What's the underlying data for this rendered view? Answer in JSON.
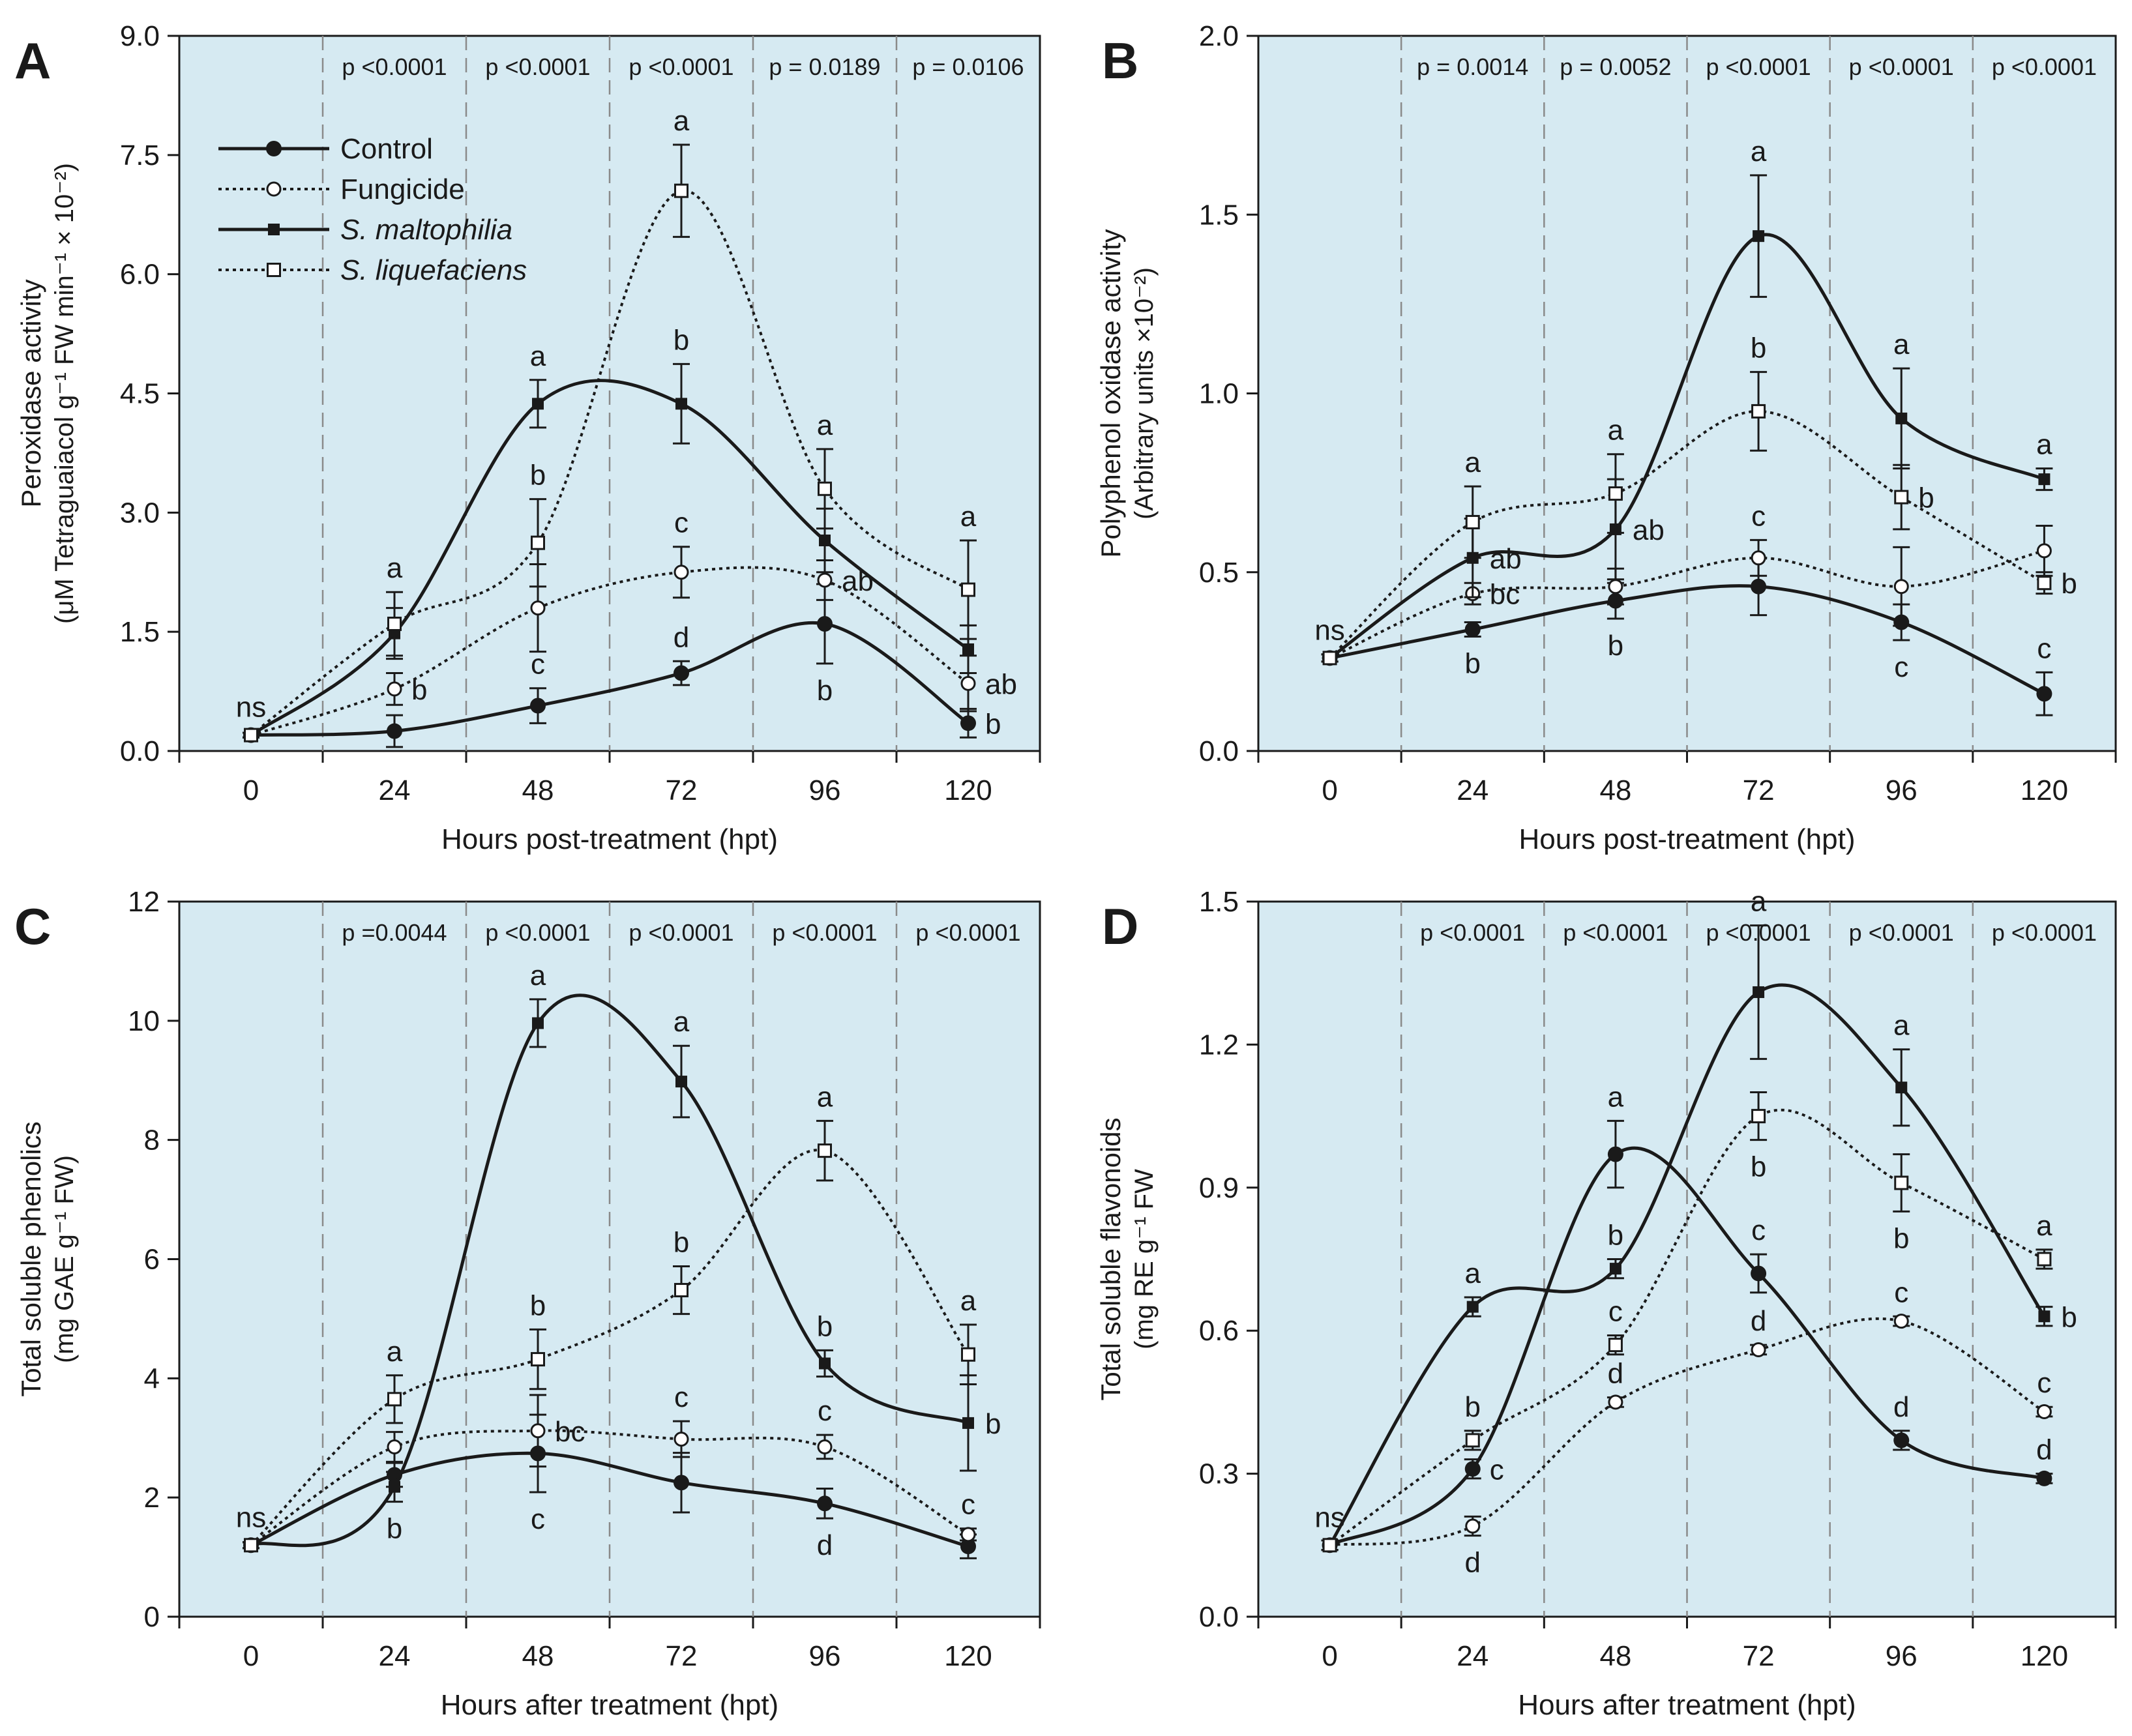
{
  "figure": {
    "series_legend": [
      {
        "name": "Control",
        "italic": false,
        "dashed": false,
        "marker": "filled-circle"
      },
      {
        "name": "Fungicide",
        "italic": false,
        "dashed": true,
        "marker": "open-circle"
      },
      {
        "name": "S. maltophilia",
        "italic": true,
        "dashed": false,
        "marker": "filled-square"
      },
      {
        "name": "S. liquefaciens",
        "italic": true,
        "dashed": true,
        "marker": "open-square"
      }
    ],
    "colors": {
      "plot_bg": "#d6eaf2",
      "line": "#1a1a1a",
      "divider": "#8a8a8a"
    }
  },
  "chart_data": [
    {
      "panel": "A",
      "type": "line",
      "ylabel_line1": "Peroxidase  activity",
      "ylabel_line2": "(μM Tetraguaiacol  g⁻¹  FW min⁻¹ × 10⁻²)",
      "xlabel": "Hours post-treatment  (hpt)",
      "x": [
        0,
        24,
        48,
        72,
        96,
        120
      ],
      "x_ticks": [
        "0",
        "24",
        "48",
        "72",
        "96",
        "120"
      ],
      "ylim": [
        0,
        9.0
      ],
      "y_ticks": [
        "0.0",
        "1.5",
        "3.0",
        "4.5",
        "6.0",
        "7.5",
        "9.0"
      ],
      "p_values": [
        "p <0.0001",
        "p <0.0001",
        "p <0.0001",
        "p = 0.0189",
        "p = 0.0106"
      ],
      "ns_label": "ns",
      "series": [
        {
          "name": "Control",
          "values": [
            0.2,
            0.25,
            0.57,
            0.98,
            1.6,
            0.35
          ],
          "errors": [
            0.03,
            0.2,
            0.22,
            0.15,
            0.5,
            0.18
          ],
          "letters": [
            "",
            "",
            "c",
            "d",
            "b",
            "b"
          ],
          "letter_side": [
            "",
            "",
            "above",
            "above",
            "below",
            "right"
          ]
        },
        {
          "name": "Fungicide",
          "values": [
            0.2,
            0.78,
            1.8,
            2.25,
            2.15,
            0.85
          ],
          "errors": [
            0.03,
            0.2,
            0.55,
            0.32,
            0.25,
            0.35
          ],
          "letters": [
            "",
            "b",
            "",
            "c",
            "ab",
            "ab"
          ],
          "letter_side": [
            "",
            "right",
            "",
            "above",
            "right",
            "right"
          ]
        },
        {
          "name": "S. maltophilia",
          "values": [
            0.2,
            1.48,
            4.37,
            4.37,
            2.65,
            1.28
          ],
          "errors": [
            0.03,
            0.32,
            0.3,
            0.5,
            0.4,
            0.3
          ],
          "letters": [
            "",
            "",
            "a",
            "b",
            "",
            ""
          ],
          "letter_side": [
            "",
            "",
            "above",
            "above",
            "",
            ""
          ]
        },
        {
          "name": "S. liquefaciens",
          "values": [
            0.2,
            1.6,
            2.62,
            7.05,
            3.3,
            2.03
          ],
          "errors": [
            0.03,
            0.4,
            0.55,
            0.58,
            0.5,
            0.62
          ],
          "letters": [
            "",
            "a",
            "b",
            "a",
            "a",
            "a"
          ],
          "letter_side": [
            "",
            "above",
            "above",
            "above",
            "above",
            "above"
          ]
        }
      ]
    },
    {
      "panel": "B",
      "type": "line",
      "ylabel_line1": "Polyphenol  oxidase  activity",
      "ylabel_line2": "(Arbitrary units ×10⁻²)",
      "xlabel": "Hours post-treatment  (hpt)",
      "x": [
        0,
        24,
        48,
        72,
        96,
        120
      ],
      "x_ticks": [
        "0",
        "24",
        "48",
        "72",
        "96",
        "120"
      ],
      "ylim": [
        0,
        2.0
      ],
      "y_ticks": [
        "0.0",
        "0.5",
        "1.0",
        "1.5",
        "2.0"
      ],
      "p_values": [
        "p = 0.0014",
        "p = 0.0052",
        "p <0.0001",
        "p <0.0001",
        "p <0.0001"
      ],
      "ns_label": "ns",
      "series": [
        {
          "name": "Control",
          "values": [
            0.26,
            0.34,
            0.42,
            0.46,
            0.36,
            0.16
          ],
          "errors": [
            0.01,
            0.02,
            0.05,
            0.08,
            0.05,
            0.06
          ],
          "letters": [
            "",
            "b",
            "b",
            "",
            "c",
            "c"
          ],
          "letter_side": [
            "",
            "below",
            "below",
            "",
            "below",
            "above"
          ]
        },
        {
          "name": "Fungicide",
          "values": [
            0.26,
            0.44,
            0.46,
            0.54,
            0.46,
            0.56
          ],
          "errors": [
            0.01,
            0.03,
            0.05,
            0.05,
            0.11,
            0.07
          ],
          "letters": [
            "",
            "bc",
            "",
            "c",
            "",
            ""
          ],
          "letter_side": [
            "",
            "right",
            "",
            "above",
            "",
            ""
          ]
        },
        {
          "name": "S. maltophilia",
          "values": [
            0.26,
            0.54,
            0.62,
            1.44,
            0.93,
            0.76
          ],
          "errors": [
            0.01,
            0.11,
            0.14,
            0.17,
            0.14,
            0.03
          ],
          "letters": [
            "",
            "ab",
            "ab",
            "a",
            "a",
            "a"
          ],
          "letter_side": [
            "",
            "right",
            "right",
            "above",
            "above",
            "above"
          ]
        },
        {
          "name": "S. liquefaciens",
          "values": [
            0.26,
            0.64,
            0.72,
            0.95,
            0.71,
            0.47
          ],
          "errors": [
            0.01,
            0.1,
            0.11,
            0.11,
            0.09,
            0.03
          ],
          "letters": [
            "",
            "a",
            "a",
            "b",
            "b",
            "b"
          ],
          "letter_side": [
            "",
            "above",
            "above",
            "above",
            "right",
            "right"
          ]
        }
      ]
    },
    {
      "panel": "C",
      "type": "line",
      "ylabel_line1": "Total  soluble  phenolics",
      "ylabel_line2": "(mg GAE  g⁻¹ FW)",
      "xlabel": "Hours after treatment  (hpt)",
      "x": [
        0,
        24,
        48,
        72,
        96,
        120
      ],
      "x_ticks": [
        "0",
        "24",
        "48",
        "72",
        "96",
        "120"
      ],
      "ylim": [
        0,
        12
      ],
      "y_ticks": [
        "0",
        "2",
        "4",
        "6",
        "8",
        "10",
        "12"
      ],
      "p_values": [
        "p =0.0044",
        "p <0.0001",
        "p <0.0001",
        "p <0.0001",
        "p <0.0001"
      ],
      "ns_label": "ns",
      "series": [
        {
          "name": "Control",
          "values": [
            1.2,
            2.38,
            2.74,
            2.25,
            1.9,
            1.18
          ],
          "errors": [
            0.05,
            0.2,
            0.65,
            0.5,
            0.25,
            0.2
          ],
          "letters": [
            "",
            "",
            "c",
            "",
            "d",
            ""
          ],
          "letter_side": [
            "",
            "",
            "below",
            "",
            "below",
            ""
          ]
        },
        {
          "name": "Fungicide",
          "values": [
            1.2,
            2.85,
            3.12,
            2.98,
            2.85,
            1.38
          ],
          "errors": [
            0.05,
            0.25,
            0.6,
            0.3,
            0.2,
            0.1
          ],
          "letters": [
            "",
            "",
            "bc",
            "c",
            "c",
            "c"
          ],
          "letter_side": [
            "",
            "",
            "right",
            "above",
            "above",
            "above"
          ]
        },
        {
          "name": "S. maltophilia",
          "values": [
            1.2,
            2.18,
            9.96,
            8.98,
            4.25,
            3.25
          ],
          "errors": [
            0.05,
            0.25,
            0.4,
            0.6,
            0.22,
            0.8
          ],
          "letters": [
            "",
            "b",
            "a",
            "a",
            "b",
            "b"
          ],
          "letter_side": [
            "",
            "below",
            "above",
            "above",
            "above",
            "right"
          ]
        },
        {
          "name": "S. liquefaciens",
          "values": [
            1.2,
            3.65,
            4.32,
            5.48,
            7.82,
            4.4
          ],
          "errors": [
            0.05,
            0.4,
            0.5,
            0.4,
            0.5,
            0.5
          ],
          "letters": [
            "",
            "a",
            "b",
            "b",
            "a",
            "a"
          ],
          "letter_side": [
            "",
            "above",
            "above",
            "above",
            "above",
            "above"
          ]
        }
      ]
    },
    {
      "panel": "D",
      "type": "line",
      "ylabel_line1": "Total  soluble  flavonoids",
      "ylabel_line2": "(mg RE  g⁻¹ FW",
      "xlabel": "Hours after treatment  (hpt)",
      "x": [
        0,
        24,
        48,
        72,
        96,
        120
      ],
      "x_ticks": [
        "0",
        "24",
        "48",
        "72",
        "96",
        "120"
      ],
      "ylim": [
        0,
        1.5
      ],
      "y_ticks": [
        "0.0",
        "0.3",
        "0.6",
        "0.9",
        "1.2",
        "1.5"
      ],
      "p_values": [
        "p <0.0001",
        "p <0.0001",
        "p <0.0001",
        "p <0.0001",
        "p <0.0001"
      ],
      "ns_label": "ns",
      "series": [
        {
          "name": "Control",
          "values": [
            0.15,
            0.31,
            0.97,
            0.72,
            0.37,
            0.29
          ],
          "errors": [
            0.01,
            0.02,
            0.07,
            0.04,
            0.02,
            0.01
          ],
          "letters": [
            "",
            "c",
            "a",
            "c",
            "d",
            "d"
          ],
          "letter_side": [
            "",
            "right",
            "above",
            "above",
            "above",
            "above"
          ]
        },
        {
          "name": "Fungicide",
          "values": [
            0.15,
            0.19,
            0.45,
            0.56,
            0.62,
            0.43
          ],
          "errors": [
            0.01,
            0.02,
            0.01,
            0.01,
            0.01,
            0.01
          ],
          "letters": [
            "",
            "d",
            "d",
            "d",
            "c",
            "c"
          ],
          "letter_side": [
            "",
            "below",
            "above",
            "above",
            "above",
            "above"
          ]
        },
        {
          "name": "S. maltophilia",
          "values": [
            0.15,
            0.65,
            0.73,
            1.31,
            1.11,
            0.63
          ],
          "errors": [
            0.01,
            0.02,
            0.02,
            0.14,
            0.08,
            0.02
          ],
          "letters": [
            "",
            "a",
            "b",
            "a",
            "a",
            "b"
          ],
          "letter_side": [
            "",
            "above",
            "above",
            "above",
            "above",
            "right"
          ]
        },
        {
          "name": "S. liquefaciens",
          "values": [
            0.15,
            0.37,
            0.57,
            1.05,
            0.91,
            0.75
          ],
          "errors": [
            0.01,
            0.02,
            0.02,
            0.05,
            0.06,
            0.02
          ],
          "letters": [
            "ns",
            "b",
            "c",
            "b",
            "b",
            "a"
          ],
          "letter_side": [
            "above",
            "above",
            "above",
            "below",
            "below",
            "above"
          ]
        }
      ]
    }
  ]
}
